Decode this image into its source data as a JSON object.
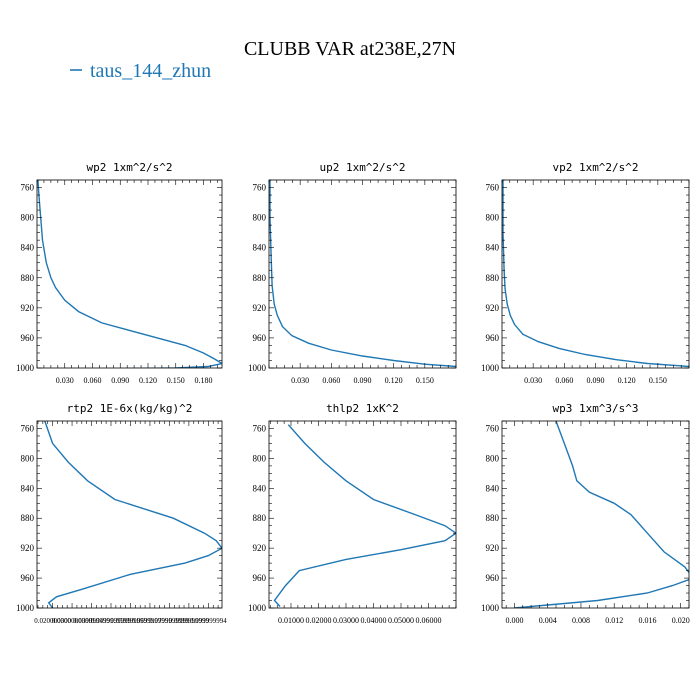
{
  "title": "CLUBB VAR at238E,27N",
  "legend": {
    "label": "taus_144_zhun",
    "color": "#1f77b4",
    "placement": "top-left"
  },
  "colors": {
    "series": "#1f77b4",
    "axis": "#000000",
    "text": "#000000"
  },
  "chart_data": [
    {
      "type": "line",
      "title": "wp2   1xm^2/s^2",
      "xlabel": "",
      "ylabel": "",
      "xlim": [
        0.0,
        0.2
      ],
      "ylim": [
        1000,
        750
      ],
      "y_inverted": true,
      "xticks": [
        0.03,
        0.06,
        0.09,
        0.12,
        0.15,
        0.18
      ],
      "xtick_labels": [
        "0.030",
        "0.060",
        "0.090",
        "0.120",
        "0.150",
        "0.180"
      ],
      "yticks": [
        760,
        800,
        840,
        880,
        920,
        960,
        1000
      ],
      "series": [
        {
          "name": "taus_144_zhun",
          "x": [
            0.001,
            0.002,
            0.004,
            0.006,
            0.01,
            0.015,
            0.02,
            0.03,
            0.045,
            0.07,
            0.1,
            0.13,
            0.16,
            0.18,
            0.192,
            0.2,
            0.185,
            0.15,
            0.08
          ],
          "y": [
            750,
            770,
            800,
            830,
            860,
            880,
            893,
            910,
            925,
            940,
            950,
            960,
            970,
            980,
            988,
            994,
            998,
            1000,
            1001
          ]
        }
      ]
    },
    {
      "type": "line",
      "title": "up2   1xm^2/s^2",
      "xlabel": "",
      "ylabel": "",
      "xlim": [
        0.0,
        0.18
      ],
      "ylim": [
        1000,
        750
      ],
      "y_inverted": true,
      "xticks": [
        0.03,
        0.06,
        0.09,
        0.12,
        0.15
      ],
      "xtick_labels": [
        "0.030",
        "0.060",
        "0.090",
        "0.120",
        "0.150"
      ],
      "yticks": [
        760,
        800,
        840,
        880,
        920,
        960,
        1000
      ],
      "series": [
        {
          "name": "taus_144_zhun",
          "x": [
            0.001,
            0.001,
            0.002,
            0.003,
            0.005,
            0.008,
            0.013,
            0.022,
            0.038,
            0.06,
            0.09,
            0.12,
            0.15,
            0.18
          ],
          "y": [
            750,
            800,
            850,
            890,
            915,
            930,
            945,
            957,
            967,
            976,
            984,
            990,
            995,
            998
          ]
        }
      ]
    },
    {
      "type": "line",
      "title": "vp2   1xm^2/s^2",
      "xlabel": "",
      "ylabel": "",
      "xlim": [
        0.0,
        0.18
      ],
      "ylim": [
        1000,
        750
      ],
      "y_inverted": true,
      "xticks": [
        0.03,
        0.06,
        0.09,
        0.12,
        0.15
      ],
      "xtick_labels": [
        "0.030",
        "0.060",
        "0.090",
        "0.120",
        "0.150"
      ],
      "yticks": [
        760,
        800,
        840,
        880,
        920,
        960,
        1000
      ],
      "series": [
        {
          "name": "taus_144_zhun",
          "x": [
            0.001,
            0.001,
            0.002,
            0.003,
            0.005,
            0.008,
            0.012,
            0.02,
            0.035,
            0.055,
            0.08,
            0.11,
            0.14,
            0.17,
            0.18
          ],
          "y": [
            750,
            820,
            870,
            895,
            915,
            930,
            942,
            955,
            965,
            974,
            982,
            989,
            994,
            997,
            998
          ]
        }
      ]
    },
    {
      "type": "line",
      "title": "rtp2   1E-6x(kg/kg)^2",
      "xlabel": "",
      "ylabel": "",
      "xlim": [
        0.012,
        0.107
      ],
      "ylim": [
        1000,
        750
      ],
      "y_inverted": true,
      "xticks": [
        0.02,
        0.03,
        0.04,
        0.05,
        0.06,
        0.07,
        0.08,
        0.09,
        0.1
      ],
      "xtick_labels": [
        "0.020000000",
        "0.0300000000",
        "0.039999999",
        "0.0499999999",
        "0.0599999999",
        "0.069999999",
        "0.0799999999",
        "0.0899999999",
        "0.099999994"
      ],
      "yticks": [
        760,
        800,
        840,
        880,
        920,
        960,
        1000
      ],
      "series": [
        {
          "name": "taus_144_zhun",
          "x": [
            0.016,
            0.02,
            0.028,
            0.038,
            0.052,
            0.082,
            0.098,
            0.104,
            0.107,
            0.1,
            0.088,
            0.06,
            0.035,
            0.022,
            0.018,
            0.02
          ],
          "y": [
            750,
            780,
            805,
            830,
            855,
            880,
            900,
            910,
            920,
            930,
            940,
            955,
            975,
            985,
            993,
            1000
          ]
        }
      ]
    },
    {
      "type": "line",
      "title": "thlp2   1xK^2",
      "xlabel": "",
      "ylabel": "",
      "xlim": [
        0.002,
        0.07
      ],
      "ylim": [
        1000,
        750
      ],
      "y_inverted": true,
      "xticks": [
        0.01,
        0.02,
        0.03,
        0.04,
        0.05,
        0.06
      ],
      "xtick_labels": [
        "0.01000",
        "0.02000",
        "0.03000",
        "0.04000",
        "0.05000",
        "0.06000"
      ],
      "yticks": [
        760,
        800,
        840,
        880,
        920,
        960,
        1000
      ],
      "series": [
        {
          "name": "taus_144_zhun",
          "x": [
            0.009,
            0.015,
            0.022,
            0.03,
            0.04,
            0.055,
            0.066,
            0.07,
            0.066,
            0.05,
            0.03,
            0.013,
            0.008,
            0.004,
            0.006
          ],
          "y": [
            755,
            780,
            805,
            830,
            855,
            875,
            890,
            900,
            910,
            922,
            935,
            950,
            970,
            990,
            998
          ]
        }
      ]
    },
    {
      "type": "line",
      "title": "wp3   1xm^3/s^3",
      "xlabel": "",
      "ylabel": "",
      "xlim": [
        -0.0015,
        0.021
      ],
      "ylim": [
        1000,
        750
      ],
      "y_inverted": true,
      "xticks": [
        0.0,
        0.004,
        0.008,
        0.012,
        0.016,
        0.02
      ],
      "xtick_labels": [
        "0.000",
        "0.004",
        "0.008",
        "0.012",
        "0.016",
        "0.020"
      ],
      "yticks": [
        760,
        800,
        840,
        880,
        920,
        960,
        1000
      ],
      "series": [
        {
          "name": "taus_144_zhun",
          "x": [
            0.005,
            0.006,
            0.007,
            0.0075,
            0.009,
            0.012,
            0.014,
            0.016,
            0.018,
            0.0205,
            0.0215,
            0.019,
            0.016,
            0.01,
            0.004,
            0.0
          ],
          "y": [
            750,
            780,
            810,
            830,
            845,
            860,
            875,
            900,
            925,
            945,
            960,
            970,
            980,
            990,
            996,
            1000
          ]
        }
      ]
    }
  ]
}
